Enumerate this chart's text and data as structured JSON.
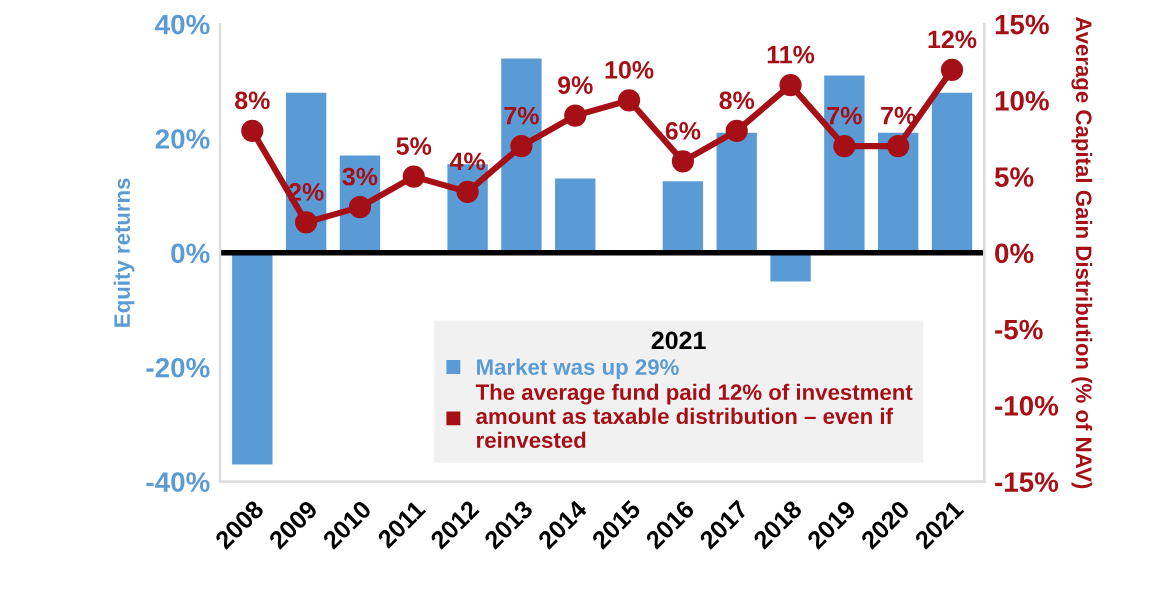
{
  "chart_data": {
    "type": "bar",
    "categories": [
      "2008",
      "2009",
      "2010",
      "2011",
      "2012",
      "2013",
      "2014",
      "2015",
      "2016",
      "2017",
      "2018",
      "2019",
      "2020",
      "2021"
    ],
    "series": [
      {
        "name": "Market was up 29%",
        "color": "#5b9bd5",
        "values": [
          -37,
          28,
          17,
          null,
          15.5,
          34,
          13,
          null,
          12.5,
          21,
          -5,
          31,
          21,
          28
        ]
      },
      {
        "name": "The average fund paid 12% of investment\namount as taxable distribution – even if\nreinvested",
        "type": "line",
        "axis": "y2",
        "color": "#a50f15",
        "marker": "circle",
        "values": [
          8,
          2,
          3,
          5,
          4,
          7,
          9,
          10,
          6,
          8,
          11,
          7,
          7,
          12
        ],
        "value_labels": [
          "8%",
          "2%",
          "3%",
          "5%",
          "4%",
          "7%",
          "9%",
          "10%",
          "6%",
          "8%",
          "11%",
          "7%",
          "7%",
          "12%"
        ]
      }
    ],
    "ref_lines": [
      {
        "axis": "y",
        "value": 0,
        "color": "#000000"
      }
    ],
    "ylabel": "Equity returns",
    "y2label": "Average Capital Gain Distribution (% of NAV)",
    "ylim": [
      -40,
      40
    ],
    "yticks": [
      {
        "value": -40,
        "label": "-40%"
      },
      {
        "value": -20,
        "label": "-20%"
      },
      {
        "value": 0,
        "label": "0%"
      },
      {
        "value": 20,
        "label": "20%"
      },
      {
        "value": 40,
        "label": "40%"
      }
    ],
    "y2lim": [
      -15,
      15
    ],
    "y2ticks": [
      {
        "value": -15,
        "label": "-15%"
      },
      {
        "value": -10,
        "label": "-10%"
      },
      {
        "value": -5,
        "label": "-5%"
      },
      {
        "value": 0,
        "label": "0%"
      },
      {
        "value": 5,
        "label": "5%"
      },
      {
        "value": 10,
        "label": "10%"
      },
      {
        "value": 15,
        "label": "15%"
      }
    ],
    "legend": "bottom",
    "legend_title": "2021",
    "grid": false
  }
}
